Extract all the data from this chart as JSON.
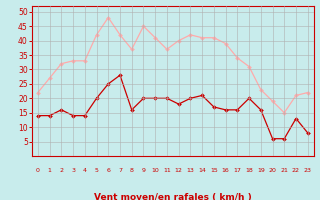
{
  "x": [
    0,
    1,
    2,
    3,
    4,
    5,
    6,
    7,
    8,
    9,
    10,
    11,
    12,
    13,
    14,
    15,
    16,
    17,
    18,
    19,
    20,
    21,
    22,
    23
  ],
  "vent_moyen": [
    14,
    14,
    16,
    14,
    14,
    20,
    25,
    28,
    16,
    20,
    20,
    20,
    18,
    20,
    21,
    17,
    16,
    16,
    20,
    16,
    6,
    6,
    13,
    8
  ],
  "rafales": [
    22,
    27,
    32,
    33,
    33,
    42,
    48,
    42,
    37,
    45,
    41,
    37,
    40,
    42,
    41,
    41,
    39,
    34,
    31,
    23,
    19,
    15,
    21,
    22
  ],
  "bg_color": "#c8ecec",
  "grid_color": "#b0b0b0",
  "line_color_moyen": "#cc0000",
  "line_color_rafales": "#ffaaaa",
  "xlabel": "Vent moyen/en rafales ( km/h )",
  "xlabel_color": "#cc0000",
  "tick_color": "#cc0000",
  "ylim": [
    0,
    52
  ],
  "yticks": [
    5,
    10,
    15,
    20,
    25,
    30,
    35,
    40,
    45,
    50
  ],
  "xlim": [
    -0.5,
    23.5
  ]
}
